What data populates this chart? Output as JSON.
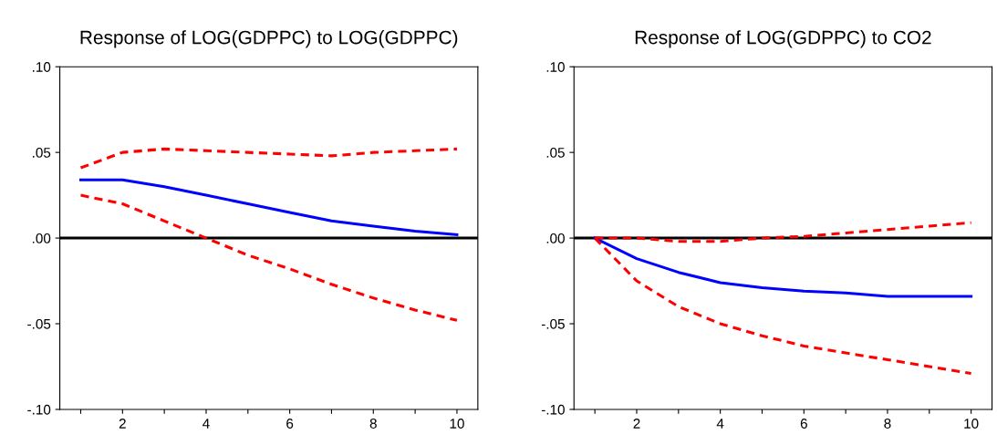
{
  "chart_data": [
    {
      "type": "line",
      "title": "Response of LOG(GDPPC) to LOG(GDPPC)",
      "x": [
        1,
        2,
        3,
        4,
        5,
        6,
        7,
        8,
        9,
        10
      ],
      "series": [
        {
          "color": "#0000ff",
          "line_style": "solid",
          "values": [
            0.034,
            0.034,
            0.03,
            0.025,
            0.02,
            0.015,
            0.01,
            0.007,
            0.004,
            0.002
          ]
        },
        {
          "color": "#ff0000",
          "line_style": "dashed",
          "values": [
            0.041,
            0.05,
            0.052,
            0.051,
            0.05,
            0.049,
            0.048,
            0.05,
            0.051,
            0.052
          ]
        },
        {
          "color": "#ff0000",
          "line_style": "dashed",
          "values": [
            0.025,
            0.02,
            0.01,
            0.0,
            -0.01,
            -0.018,
            -0.027,
            -0.035,
            -0.042,
            -0.048
          ]
        }
      ],
      "xlim": [
        0.5,
        10.5
      ],
      "xticks": [
        {
          "value": 1,
          "label": null
        },
        2,
        {
          "value": 3,
          "label": null
        },
        4,
        {
          "value": 5,
          "label": null
        },
        6,
        {
          "value": 7,
          "label": null
        },
        8,
        {
          "value": 9,
          "label": null
        },
        10
      ],
      "ylim": [
        -0.1,
        0.1
      ],
      "yticks": [
        {
          "value": -0.1,
          "label": "-.10"
        },
        {
          "value": -0.05,
          "label": "-.05"
        },
        {
          "value": 0,
          "label": ".00"
        },
        {
          "value": 0.05,
          "label": ".05"
        },
        {
          "value": 0.1,
          "label": ".10"
        }
      ],
      "ref_lines": [
        {
          "axis": "y",
          "value": 0,
          "color": "#000000"
        }
      ],
      "grid": false,
      "legend": false
    },
    {
      "type": "line",
      "title": "Response of LOG(GDPPC) to CO2",
      "x": [
        1,
        2,
        3,
        4,
        5,
        6,
        7,
        8,
        9,
        10
      ],
      "series": [
        {
          "color": "#0000ff",
          "line_style": "solid",
          "values": [
            0.0,
            -0.012,
            -0.02,
            -0.026,
            -0.029,
            -0.031,
            -0.032,
            -0.034,
            -0.034,
            -0.034
          ]
        },
        {
          "color": "#ff0000",
          "line_style": "dashed",
          "values": [
            0.0,
            0.0,
            -0.002,
            -0.002,
            0.0,
            0.001,
            0.003,
            0.005,
            0.007,
            0.009
          ]
        },
        {
          "color": "#ff0000",
          "line_style": "dashed",
          "values": [
            0.0,
            -0.025,
            -0.04,
            -0.05,
            -0.057,
            -0.063,
            -0.067,
            -0.071,
            -0.075,
            -0.079
          ]
        }
      ],
      "xlim": [
        0.5,
        10.5
      ],
      "xticks": [
        {
          "value": 1,
          "label": null
        },
        2,
        {
          "value": 3,
          "label": null
        },
        4,
        {
          "value": 5,
          "label": null
        },
        6,
        {
          "value": 7,
          "label": null
        },
        8,
        {
          "value": 9,
          "label": null
        },
        10
      ],
      "ylim": [
        -0.1,
        0.1
      ],
      "yticks": [
        {
          "value": -0.1,
          "label": "-.10"
        },
        {
          "value": -0.05,
          "label": "-.05"
        },
        {
          "value": 0,
          "label": ".00"
        },
        {
          "value": 0.05,
          "label": ".05"
        },
        {
          "value": 0.1,
          "label": ".10"
        }
      ],
      "ref_lines": [
        {
          "axis": "y",
          "value": 0,
          "color": "#000000"
        }
      ],
      "grid": false,
      "legend": false
    }
  ]
}
